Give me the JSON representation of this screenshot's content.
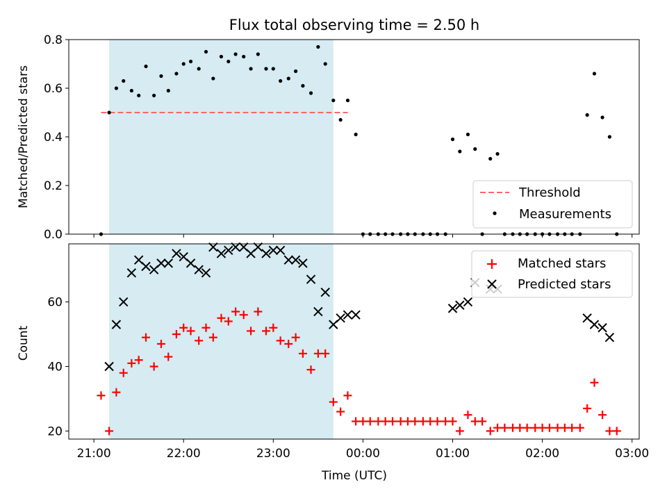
{
  "title": "Flux total observing time = 2.50 h",
  "colors": {
    "shade": "#add8e6",
    "threshold": "#ff6666",
    "measurement": "#000000",
    "matched": "#ff0000",
    "predicted": "#000000"
  },
  "chart_data": [
    {
      "type": "scatter",
      "ylabel": "Matched/Predicted stars",
      "xlabel": "",
      "ylim": [
        0,
        0.8
      ],
      "yticks": [
        "0.0",
        "0.2",
        "0.4",
        "0.6",
        "0.8"
      ],
      "shaded_interval_h": [
        21.17,
        23.67
      ],
      "threshold": {
        "name": "Threshold",
        "value": 0.5,
        "x_start_h": 21.08,
        "x_end_h": 23.83
      },
      "legend": {
        "position": "lower-right",
        "entries": [
          "Threshold",
          "Measurements"
        ]
      },
      "series": [
        {
          "name": "Measurements",
          "points": [
            [
              21.08,
              0.0
            ],
            [
              21.17,
              0.5
            ],
            [
              21.25,
              0.6
            ],
            [
              21.33,
              0.63
            ],
            [
              21.42,
              0.59
            ],
            [
              21.5,
              0.57
            ],
            [
              21.58,
              0.69
            ],
            [
              21.67,
              0.57
            ],
            [
              21.75,
              0.65
            ],
            [
              21.83,
              0.59
            ],
            [
              21.92,
              0.66
            ],
            [
              22.0,
              0.7
            ],
            [
              22.08,
              0.71
            ],
            [
              22.17,
              0.68
            ],
            [
              22.25,
              0.75
            ],
            [
              22.33,
              0.64
            ],
            [
              22.42,
              0.73
            ],
            [
              22.5,
              0.71
            ],
            [
              22.58,
              0.74
            ],
            [
              22.67,
              0.73
            ],
            [
              22.75,
              0.68
            ],
            [
              22.83,
              0.74
            ],
            [
              22.92,
              0.68
            ],
            [
              23.0,
              0.68
            ],
            [
              23.08,
              0.63
            ],
            [
              23.17,
              0.64
            ],
            [
              23.25,
              0.67
            ],
            [
              23.33,
              0.61
            ],
            [
              23.42,
              0.58
            ],
            [
              23.5,
              0.77
            ],
            [
              23.58,
              0.7
            ],
            [
              23.67,
              0.55
            ],
            [
              23.75,
              0.47
            ],
            [
              23.83,
              0.55
            ],
            [
              23.92,
              0.41
            ],
            [
              24.0,
              0.0
            ],
            [
              24.08,
              0.0
            ],
            [
              24.17,
              0.0
            ],
            [
              24.25,
              0.0
            ],
            [
              24.33,
              0.0
            ],
            [
              24.42,
              0.0
            ],
            [
              24.5,
              0.0
            ],
            [
              24.58,
              0.0
            ],
            [
              24.67,
              0.0
            ],
            [
              24.75,
              0.0
            ],
            [
              24.83,
              0.0
            ],
            [
              24.92,
              0.0
            ],
            [
              25.0,
              0.39
            ],
            [
              25.08,
              0.34
            ],
            [
              25.17,
              0.41
            ],
            [
              25.25,
              0.35
            ],
            [
              25.33,
              0.0
            ],
            [
              25.42,
              0.31
            ],
            [
              25.5,
              0.33
            ],
            [
              25.58,
              0.0
            ],
            [
              25.67,
              0.0
            ],
            [
              25.75,
              0.0
            ],
            [
              25.83,
              0.0
            ],
            [
              25.92,
              0.0
            ],
            [
              26.0,
              0.0
            ],
            [
              26.08,
              0.0
            ],
            [
              26.17,
              0.0
            ],
            [
              26.25,
              0.0
            ],
            [
              26.33,
              0.0
            ],
            [
              26.42,
              0.0
            ],
            [
              26.5,
              0.49
            ],
            [
              26.58,
              0.66
            ],
            [
              26.67,
              0.48
            ],
            [
              26.75,
              0.4
            ],
            [
              26.83,
              0.0
            ]
          ]
        }
      ]
    },
    {
      "type": "scatter",
      "ylabel": "Count",
      "xlabel": "Time (UTC)",
      "ylim": [
        17.5,
        78
      ],
      "yticks": [
        "20",
        "40",
        "60"
      ],
      "xlim_h": [
        20.72,
        27.08
      ],
      "xticks": [
        "21:00",
        "22:00",
        "23:00",
        "00:00",
        "01:00",
        "02:00",
        "03:00"
      ],
      "shaded_interval_h": [
        21.17,
        23.67
      ],
      "legend": {
        "position": "top-right",
        "entries": [
          "Matched stars",
          "Predicted stars"
        ]
      },
      "series": [
        {
          "name": "Matched stars",
          "points": [
            [
              21.08,
              31
            ],
            [
              21.17,
              20
            ],
            [
              21.25,
              32
            ],
            [
              21.33,
              38
            ],
            [
              21.42,
              41
            ],
            [
              21.5,
              42
            ],
            [
              21.58,
              49
            ],
            [
              21.67,
              40
            ],
            [
              21.75,
              47
            ],
            [
              21.83,
              43
            ],
            [
              21.92,
              50
            ],
            [
              22.0,
              52
            ],
            [
              22.08,
              51
            ],
            [
              22.17,
              48
            ],
            [
              22.25,
              52
            ],
            [
              22.33,
              49
            ],
            [
              22.42,
              55
            ],
            [
              22.5,
              54
            ],
            [
              22.58,
              57
            ],
            [
              22.67,
              56
            ],
            [
              22.75,
              51
            ],
            [
              22.83,
              57
            ],
            [
              22.92,
              51
            ],
            [
              23.0,
              52
            ],
            [
              23.08,
              48
            ],
            [
              23.17,
              47
            ],
            [
              23.25,
              49
            ],
            [
              23.33,
              44
            ],
            [
              23.42,
              39
            ],
            [
              23.5,
              44
            ],
            [
              23.58,
              44
            ],
            [
              23.67,
              29
            ],
            [
              23.75,
              26
            ],
            [
              23.83,
              31
            ],
            [
              23.92,
              23
            ],
            [
              24.0,
              23
            ],
            [
              24.08,
              23
            ],
            [
              24.17,
              23
            ],
            [
              24.25,
              23
            ],
            [
              24.33,
              23
            ],
            [
              24.42,
              23
            ],
            [
              24.5,
              23
            ],
            [
              24.58,
              23
            ],
            [
              24.67,
              23
            ],
            [
              24.75,
              23
            ],
            [
              24.83,
              23
            ],
            [
              24.92,
              23
            ],
            [
              25.0,
              23
            ],
            [
              25.08,
              20
            ],
            [
              25.17,
              25
            ],
            [
              25.25,
              23
            ],
            [
              25.33,
              23
            ],
            [
              25.42,
              20
            ],
            [
              25.5,
              21
            ],
            [
              25.58,
              21
            ],
            [
              25.67,
              21
            ],
            [
              25.75,
              21
            ],
            [
              25.83,
              21
            ],
            [
              25.92,
              21
            ],
            [
              26.0,
              21
            ],
            [
              26.08,
              21
            ],
            [
              26.17,
              21
            ],
            [
              26.25,
              21
            ],
            [
              26.33,
              21
            ],
            [
              26.42,
              21
            ],
            [
              26.5,
              27
            ],
            [
              26.58,
              35
            ],
            [
              26.67,
              25
            ],
            [
              26.75,
              20
            ],
            [
              26.83,
              20
            ]
          ]
        },
        {
          "name": "Predicted stars",
          "points": [
            [
              21.17,
              40
            ],
            [
              21.25,
              53
            ],
            [
              21.33,
              60
            ],
            [
              21.42,
              69
            ],
            [
              21.5,
              73
            ],
            [
              21.58,
              71
            ],
            [
              21.67,
              70
            ],
            [
              21.75,
              72
            ],
            [
              21.83,
              72
            ],
            [
              21.92,
              75
            ],
            [
              22.0,
              74
            ],
            [
              22.08,
              72
            ],
            [
              22.17,
              70
            ],
            [
              22.25,
              69
            ],
            [
              22.33,
              77
            ],
            [
              22.42,
              75
            ],
            [
              22.5,
              76
            ],
            [
              22.58,
              77
            ],
            [
              22.67,
              77
            ],
            [
              22.75,
              75
            ],
            [
              22.83,
              77
            ],
            [
              22.92,
              75
            ],
            [
              23.0,
              76
            ],
            [
              23.08,
              76
            ],
            [
              23.17,
              73
            ],
            [
              23.25,
              73
            ],
            [
              23.33,
              72
            ],
            [
              23.42,
              67
            ],
            [
              23.5,
              57
            ],
            [
              23.58,
              63
            ],
            [
              23.67,
              53
            ],
            [
              23.75,
              55
            ],
            [
              23.83,
              56
            ],
            [
              23.92,
              56
            ],
            [
              25.0,
              58
            ],
            [
              25.08,
              59
            ],
            [
              25.17,
              60
            ],
            [
              25.25,
              66
            ],
            [
              25.42,
              64
            ],
            [
              25.5,
              64
            ],
            [
              26.5,
              55
            ],
            [
              26.58,
              53
            ],
            [
              26.67,
              52
            ],
            [
              26.75,
              49
            ]
          ]
        }
      ]
    }
  ]
}
